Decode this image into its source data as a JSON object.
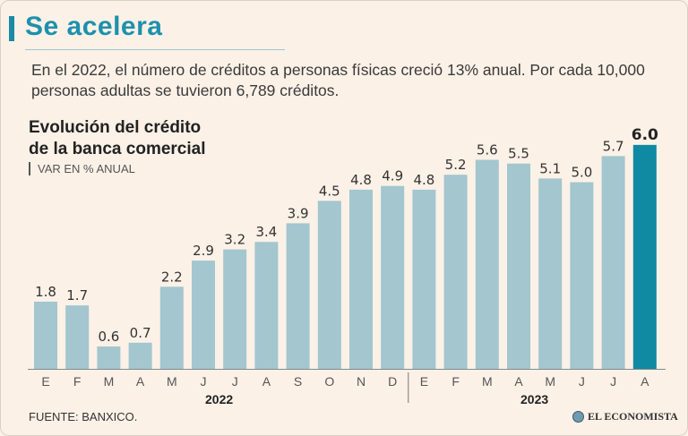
{
  "header": {
    "title": "Se acelera",
    "intro": "En el 2022, el número de créditos a personas físicas creció 13% anual. Por cada 10,000 personas adultas se tuvieron 6,789 créditos."
  },
  "chart_data": {
    "type": "bar",
    "title": "Evolución del crédito de la banca comercial",
    "title_lines": [
      "Evolución del crédito",
      "de la banca comercial"
    ],
    "subtitle": "VAR EN % ANUAL",
    "categories": [
      "E",
      "F",
      "M",
      "A",
      "M",
      "J",
      "J",
      "A",
      "S",
      "O",
      "N",
      "D",
      "E",
      "F",
      "M",
      "A",
      "M",
      "J",
      "J",
      "A"
    ],
    "values": [
      1.8,
      1.7,
      0.6,
      0.7,
      2.2,
      2.9,
      3.2,
      3.4,
      3.9,
      4.5,
      4.8,
      4.9,
      4.8,
      5.2,
      5.6,
      5.5,
      5.1,
      5.0,
      5.7,
      6.0
    ],
    "value_labels": [
      "1.8",
      "1.7",
      "0.6",
      "0.7",
      "2.2",
      "2.9",
      "3.2",
      "3.4",
      "3.9",
      "4.5",
      "4.8",
      "4.9",
      "4.8",
      "5.2",
      "5.6",
      "5.5",
      "5.1",
      "5.0",
      "5.7",
      "6.0"
    ],
    "years": [
      {
        "label": "2022",
        "start": 0,
        "end": 11
      },
      {
        "label": "2023",
        "start": 12,
        "end": 19
      }
    ],
    "highlight_index": 19,
    "ylim": [
      0,
      6.5
    ],
    "xlabel": "",
    "ylabel": "VAR EN % ANUAL",
    "colors": {
      "bar": "#a3c6cf",
      "highlight": "#0f8aa2"
    }
  },
  "footer": {
    "source": "FUENTE: BANXICO.",
    "brand": "EL ECONOMISTA"
  }
}
